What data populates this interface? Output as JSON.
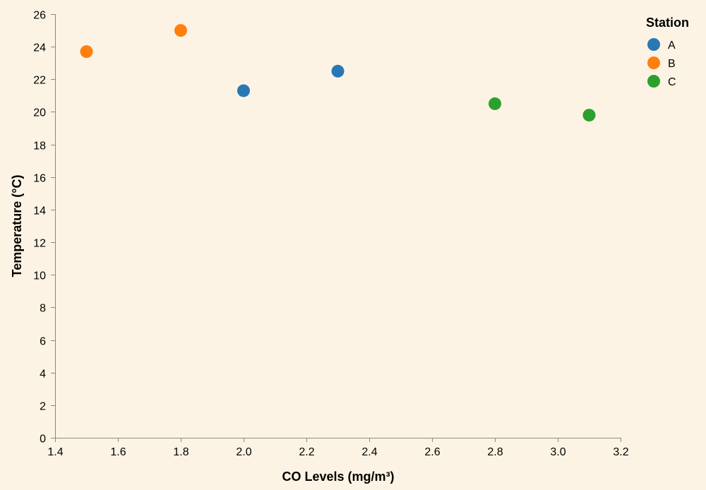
{
  "chart_data": {
    "type": "scatter",
    "title": "",
    "xlabel": "CO Levels (mg/m³)",
    "ylabel": "Temperature (°C)",
    "xlim": [
      1.4,
      3.2
    ],
    "ylim": [
      0,
      26
    ],
    "x_ticks": [
      "1.4",
      "1.6",
      "1.8",
      "2.0",
      "2.2",
      "2.4",
      "2.6",
      "2.8",
      "3.0",
      "3.2"
    ],
    "y_ticks": [
      "0",
      "2",
      "4",
      "6",
      "8",
      "10",
      "12",
      "14",
      "16",
      "18",
      "20",
      "22",
      "24",
      "26"
    ],
    "grid": false,
    "legend": {
      "title": "Station",
      "placement": "top-right"
    },
    "series": [
      {
        "name": "A",
        "color": "#2878b5",
        "points": [
          {
            "x": 2.0,
            "y": 21.3
          },
          {
            "x": 2.3,
            "y": 22.5
          }
        ]
      },
      {
        "name": "B",
        "color": "#ff7f0e",
        "points": [
          {
            "x": 1.5,
            "y": 23.7
          },
          {
            "x": 1.8,
            "y": 25.0
          }
        ]
      },
      {
        "name": "C",
        "color": "#2ca02c",
        "points": [
          {
            "x": 2.8,
            "y": 20.5
          },
          {
            "x": 3.1,
            "y": 19.8
          }
        ]
      }
    ]
  }
}
